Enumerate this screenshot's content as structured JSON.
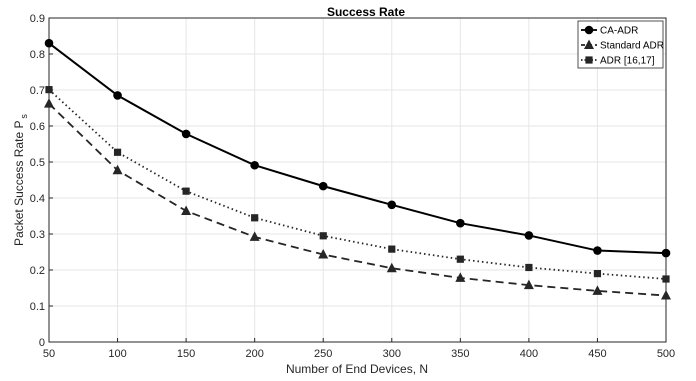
{
  "chart_data": {
    "type": "line",
    "title": "Success Rate",
    "xlabel": "Number of End Devices, N",
    "ylabel": "Packet Success Rate P",
    "ylabel_subscript": "s",
    "x": [
      50,
      100,
      150,
      200,
      250,
      300,
      350,
      400,
      450,
      500
    ],
    "xlim": [
      50,
      500
    ],
    "ylim": [
      0,
      0.9
    ],
    "xticks": [
      "50",
      "100",
      "150",
      "200",
      "250",
      "300",
      "350",
      "400",
      "450",
      "500"
    ],
    "yticks": [
      "0",
      "0.1",
      "0.2",
      "0.3",
      "0.4",
      "0.5",
      "0.6",
      "0.7",
      "0.8",
      "0.9"
    ],
    "grid": true,
    "legend_position": "top-right",
    "series": [
      {
        "name": "CA-ADR",
        "marker": "circle",
        "line": "solid",
        "color": "#000000",
        "values": [
          0.83,
          0.685,
          0.578,
          0.491,
          0.433,
          0.381,
          0.33,
          0.296,
          0.254,
          0.247
        ]
      },
      {
        "name": "Standard ADR",
        "marker": "triangle",
        "line": "dashed",
        "color": "#262626",
        "values": [
          0.662,
          0.477,
          0.364,
          0.292,
          0.243,
          0.205,
          0.178,
          0.158,
          0.142,
          0.129
        ]
      },
      {
        "name": "ADR [16,17]",
        "marker": "square",
        "line": "dotted",
        "color": "#262626",
        "values": [
          0.701,
          0.527,
          0.419,
          0.345,
          0.295,
          0.258,
          0.23,
          0.207,
          0.19,
          0.175
        ]
      }
    ]
  }
}
